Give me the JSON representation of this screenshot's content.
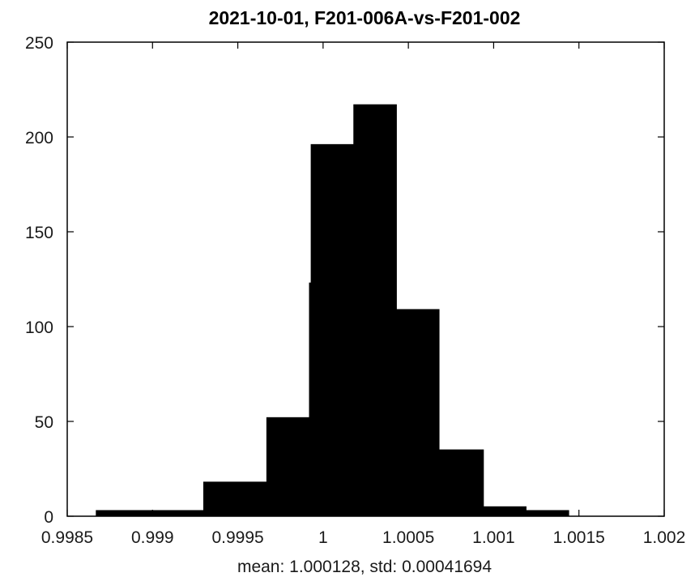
{
  "chart_data": {
    "type": "bar",
    "subtype": "histogram",
    "title": "2021-10-01, F201-006A-vs-F201-002",
    "xlabel": "mean: 1.000128, std: 0.00041694",
    "ylabel": "",
    "xlim": [
      0.9985,
      1.002
    ],
    "ylim": [
      0,
      250
    ],
    "xticks": [
      0.9985,
      0.999,
      0.9995,
      1,
      1.0005,
      1.001,
      1.0015,
      1.002
    ],
    "xtick_labels": [
      "0.9985",
      "0.999",
      "0.9995",
      "1",
      "1.0005",
      "1.001",
      "1.0015",
      "1.002"
    ],
    "yticks": [
      0,
      50,
      100,
      150,
      200,
      250
    ],
    "ytick_labels": [
      "0",
      "50",
      "100",
      "150",
      "200",
      "250"
    ],
    "bins": [
      {
        "x0": 0.99867,
        "x1": 0.9993,
        "count": 3
      },
      {
        "x0": 0.9993,
        "x1": 0.99967,
        "count": 18
      },
      {
        "x0": 0.99967,
        "x1": 0.99992,
        "count": 52
      },
      {
        "x0": 0.99992,
        "x1": 0.99993,
        "count": 123
      },
      {
        "x0": 0.99993,
        "x1": 1.00018,
        "count": 196
      },
      {
        "x0": 1.00018,
        "x1": 1.00043,
        "count": 217
      },
      {
        "x0": 1.00043,
        "x1": 1.00068,
        "count": 109
      },
      {
        "x0": 1.00068,
        "x1": 1.00094,
        "count": 35
      },
      {
        "x0": 1.00094,
        "x1": 1.00119,
        "count": 5
      },
      {
        "x0": 1.00119,
        "x1": 1.00144,
        "count": 3
      }
    ],
    "bar_color": "#000000",
    "box": true,
    "grid": false,
    "legend": "none"
  }
}
